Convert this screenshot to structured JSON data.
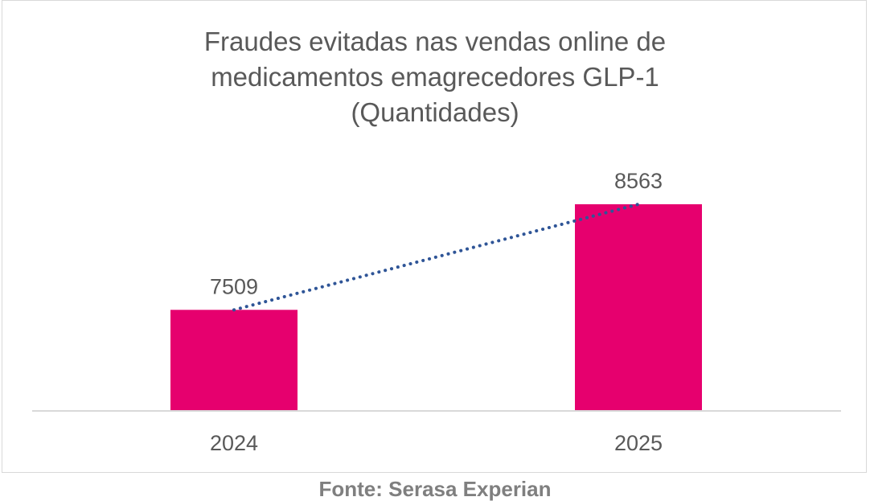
{
  "chart_data": {
    "type": "bar",
    "title_lines": [
      "Fraudes evitadas nas vendas online de",
      "medicamentos emagrecedores GLP-1",
      "(Quantidades)"
    ],
    "categories": [
      "2024",
      "2025"
    ],
    "series": [
      {
        "values": [
          7509,
          8563
        ],
        "data_labels": [
          "7509",
          "8563"
        ],
        "color": "#e6006e"
      }
    ],
    "trendline": {
      "type": "linear",
      "style": "dotted",
      "color": "#2f5597"
    },
    "xlabel": "",
    "ylabel": "",
    "ylim": [
      6500,
      9500
    ],
    "y_axis_visible": false,
    "grid": false,
    "legend": "none"
  },
  "source": "Fonte: Serasa Experian",
  "colors": {
    "bar": "#e6006e",
    "trendline": "#2f5597",
    "text": "#595959",
    "axis": "#d9d9d9",
    "source": "#7f7f7f"
  }
}
